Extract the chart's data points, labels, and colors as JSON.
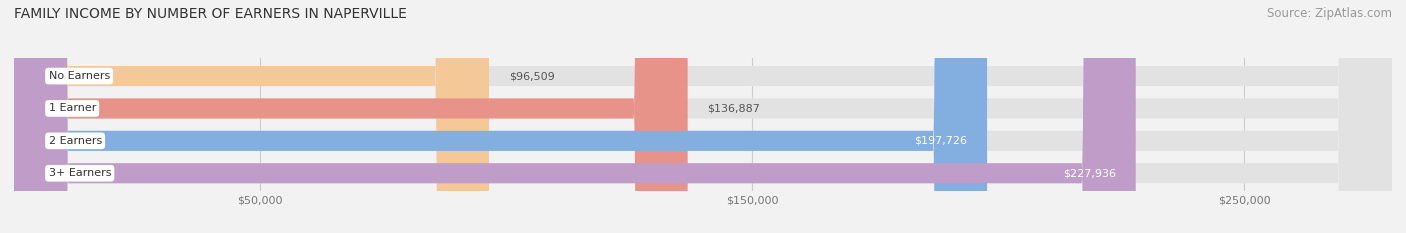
{
  "title": "FAMILY INCOME BY NUMBER OF EARNERS IN NAPERVILLE",
  "source": "Source: ZipAtlas.com",
  "categories": [
    "No Earners",
    "1 Earner",
    "2 Earners",
    "3+ Earners"
  ],
  "values": [
    96509,
    136887,
    197726,
    227936
  ],
  "bar_colors": [
    "#f5c897",
    "#e8938a",
    "#82aee0",
    "#c09cc8"
  ],
  "label_colors": [
    "#555555",
    "#555555",
    "#ffffff",
    "#ffffff"
  ],
  "x_max": 280000,
  "x_ticks": [
    50000,
    150000,
    250000
  ],
  "x_tick_labels": [
    "$50,000",
    "$150,000",
    "$250,000"
  ],
  "bg_color": "#f2f2f2",
  "bar_bg_color": "#e2e2e2",
  "title_fontsize": 10,
  "source_fontsize": 8.5,
  "label_fontsize": 8,
  "tick_fontsize": 8,
  "bar_height": 0.62
}
